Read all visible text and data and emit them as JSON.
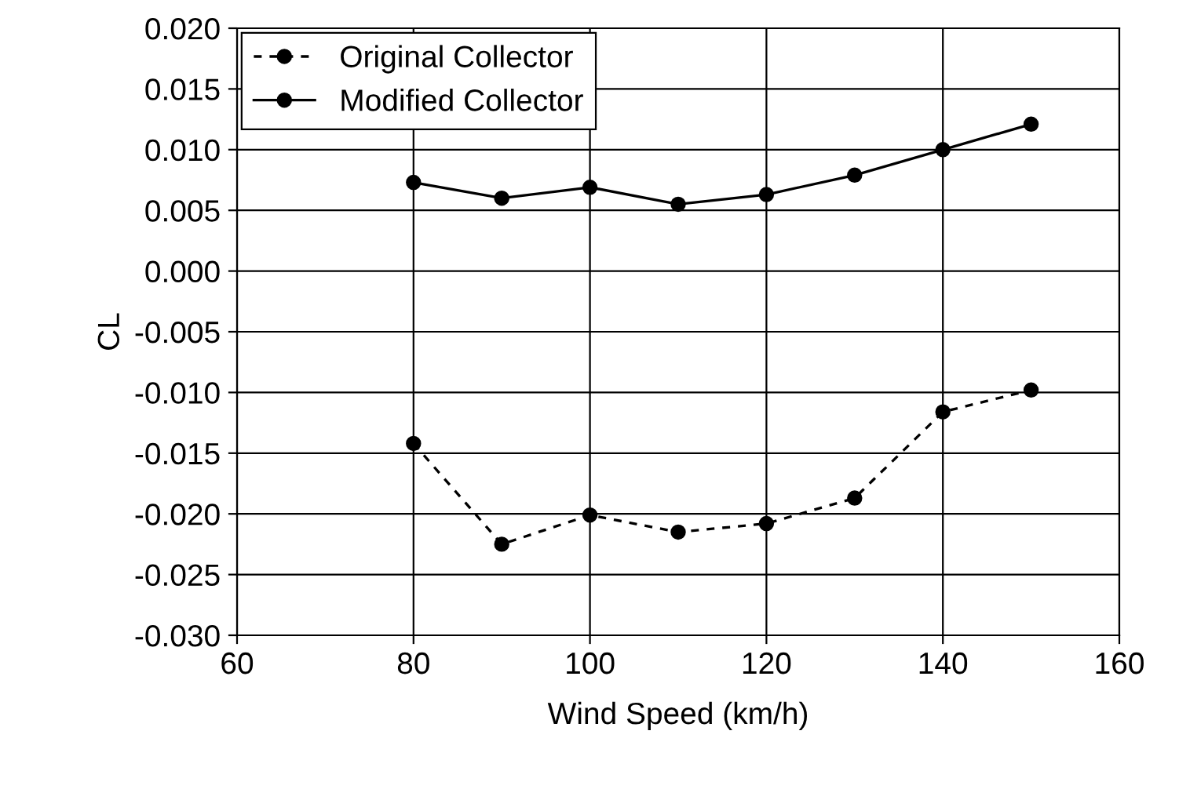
{
  "chart_data": {
    "type": "line",
    "xlabel": "Wind Speed (km/h)",
    "ylabel": "CL",
    "x": [
      80,
      90,
      100,
      110,
      120,
      130,
      140,
      150
    ],
    "series": [
      {
        "name": "Original Collector",
        "color": "#000000",
        "line_style": "dashed",
        "values": [
          -0.0142,
          -0.0225,
          -0.0201,
          -0.0215,
          -0.0208,
          -0.0187,
          -0.0116,
          -0.0098
        ]
      },
      {
        "name": "Modified Collector",
        "color": "#000000",
        "line_style": "solid",
        "values": [
          0.0073,
          0.006,
          0.0069,
          0.0055,
          0.0063,
          0.0079,
          0.01,
          0.0121
        ]
      }
    ],
    "marker": "circle",
    "grid": true,
    "legend": "top left",
    "xlim": [
      60,
      160
    ],
    "xticks": [
      60,
      80,
      100,
      120,
      140,
      160
    ],
    "ylim": [
      -0.03,
      0.02
    ],
    "yticks": [
      {
        "value": -0.03,
        "label": "-0.030"
      },
      {
        "value": -0.025,
        "label": "-0.025"
      },
      {
        "value": -0.02,
        "label": "-0.020"
      },
      {
        "value": -0.015,
        "label": "-0.015"
      },
      {
        "value": -0.01,
        "label": "-0.010"
      },
      {
        "value": -0.005,
        "label": "-0.005"
      },
      {
        "value": 0,
        "label": "0.000"
      },
      {
        "value": 0.005,
        "label": "0.005"
      },
      {
        "value": 0.01,
        "label": "0.010"
      },
      {
        "value": 0.015,
        "label": "0.015"
      },
      {
        "value": 0.02,
        "label": "0.020"
      }
    ]
  }
}
